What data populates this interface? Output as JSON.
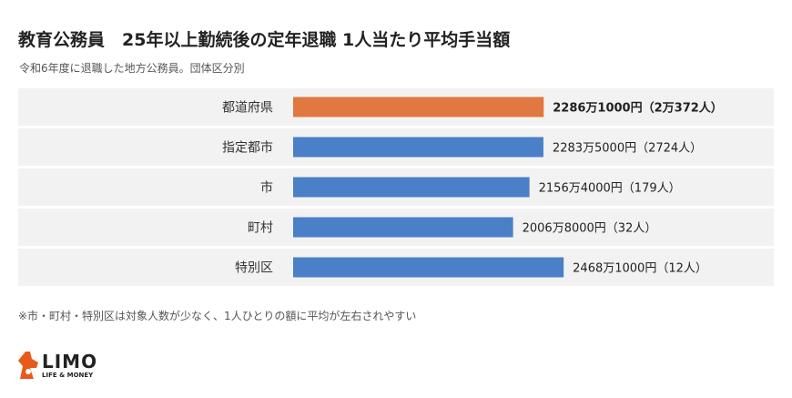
{
  "header": {
    "title": "教育公務員　25年以上勤続後の定年退職 1人当たり平均手当額",
    "subtitle": "令和6年度に退職した地方公務員。団体区分別"
  },
  "footnote": "※市・町村・特別区は対象人数が少なく、1人ひとりの額に平均が左右されやすい",
  "logo": {
    "text": "LIMO",
    "subtext": "LIFE & MONEY"
  },
  "colors": {
    "highlight_bar": "#E07840",
    "bar": "#4A80C8",
    "row_band": "#F2F2F2"
  },
  "chart_data": {
    "type": "bar",
    "orientation": "horizontal",
    "categories": [
      "都道府県",
      "指定都市",
      "市",
      "町村",
      "特別区"
    ],
    "values": [
      2286.1,
      2283.5,
      2156.4,
      2006.8,
      2468.1
    ],
    "unit": "万円",
    "value_labels": [
      "2286万1000円（2万372人）",
      "2283万5000円（2724人）",
      "2156万4000円（179人）",
      "2006万8000円（32人）",
      "2468万1000円（12人）"
    ],
    "highlight_index": 0,
    "xlim": [
      0,
      2700
    ],
    "grid": false,
    "axes_visible": false
  }
}
